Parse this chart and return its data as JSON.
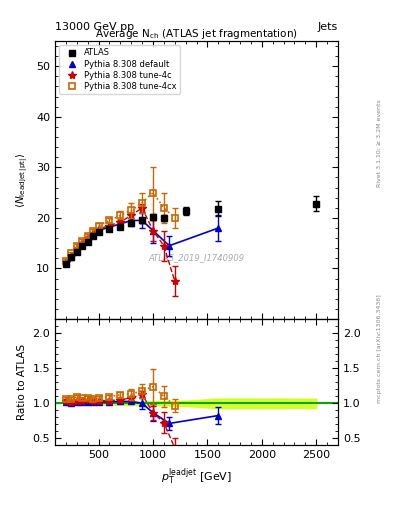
{
  "title_top": "13000 GeV pp",
  "title_right": "Jets",
  "plot_title": "Average N$_{\\rm ch}$ (ATLAS jet fragmentation)",
  "ylabel_main": "$\\langle N_{\\rm leadjet} [\\rm pt] \\rangle$",
  "ylabel_ratio": "Ratio to ATLAS",
  "xlabel": "$p_{\\rm T}^{\\rm leadjet}$ [GeV]",
  "watermark": "ATLAS_2019_I1740909",
  "right_label1": "Rivet 3.1.10; ≥ 3.2M events",
  "right_label2": "mcplots.cern.ch [arXiv:1306.3436]",
  "atlas_x": [
    200,
    250,
    300,
    350,
    400,
    450,
    500,
    600,
    700,
    800,
    900,
    1000,
    1100,
    1300,
    1600,
    2500
  ],
  "atlas_y": [
    10.8,
    12.2,
    13.3,
    14.5,
    15.3,
    16.5,
    17.2,
    17.8,
    18.3,
    19.0,
    19.5,
    20.2,
    20.0,
    21.3,
    21.8,
    22.8
  ],
  "atlas_yerr": [
    0.3,
    0.3,
    0.3,
    0.3,
    0.3,
    0.3,
    0.3,
    0.4,
    0.4,
    0.5,
    0.5,
    0.6,
    0.6,
    0.8,
    1.5,
    1.5
  ],
  "default_x": [
    200,
    250,
    300,
    350,
    400,
    450,
    500,
    600,
    700,
    800,
    900,
    1000,
    1150,
    1600
  ],
  "default_y": [
    11.0,
    12.3,
    13.5,
    14.7,
    15.5,
    16.8,
    17.5,
    18.2,
    18.8,
    19.5,
    19.5,
    17.5,
    14.5,
    18.0
  ],
  "default_yerr": [
    0.2,
    0.2,
    0.2,
    0.2,
    0.2,
    0.3,
    0.3,
    0.3,
    0.4,
    0.5,
    1.5,
    2.5,
    2.0,
    2.5
  ],
  "tune4c_x": [
    200,
    250,
    300,
    350,
    400,
    450,
    500,
    600,
    700,
    800,
    900,
    1000,
    1100,
    1200
  ],
  "tune4c_y": [
    11.2,
    12.5,
    13.8,
    15.0,
    16.0,
    17.0,
    17.8,
    18.5,
    19.2,
    20.5,
    22.0,
    17.5,
    14.5,
    7.5
  ],
  "tune4c_yerr": [
    0.2,
    0.2,
    0.2,
    0.3,
    0.3,
    0.3,
    0.3,
    0.4,
    0.4,
    0.5,
    0.8,
    2.0,
    3.0,
    3.0
  ],
  "tune4cx_x": [
    200,
    250,
    300,
    350,
    400,
    450,
    500,
    600,
    700,
    800,
    900,
    1000,
    1100,
    1200
  ],
  "tune4cx_y": [
    11.5,
    13.0,
    14.5,
    15.5,
    16.5,
    17.5,
    18.5,
    19.5,
    20.5,
    21.5,
    23.0,
    25.0,
    22.0,
    20.0
  ],
  "tune4cx_yerr": [
    0.3,
    0.3,
    0.3,
    0.3,
    0.3,
    0.4,
    0.4,
    0.5,
    0.8,
    1.5,
    2.0,
    5.0,
    3.0,
    2.0
  ],
  "ylim_main": [
    0,
    55
  ],
  "ylim_ratio": [
    0.4,
    2.2
  ],
  "xlim": [
    100,
    2700
  ],
  "yticks_main": [
    10,
    20,
    30,
    40,
    50
  ],
  "yticks_ratio": [
    0.5,
    1.0,
    1.5,
    2.0
  ],
  "color_atlas": "#000000",
  "color_default": "#0000cc",
  "color_tune4c": "#cc0000",
  "color_tune4cx": "#cc6600",
  "color_ref_band": "#ccff00",
  "color_ref_line": "#00aa00"
}
